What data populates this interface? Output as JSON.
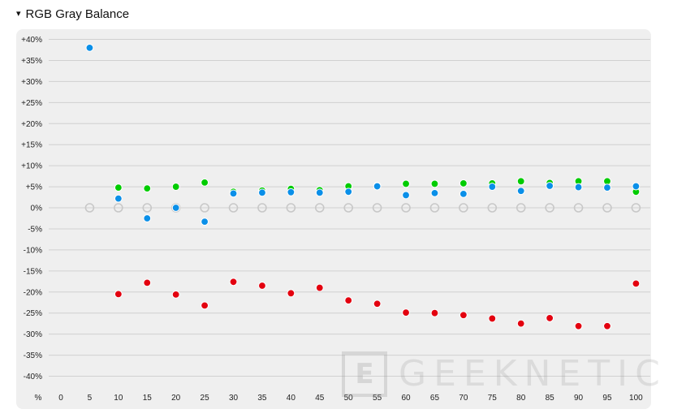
{
  "header": {
    "caret": "▾",
    "title": "RGB Gray Balance"
  },
  "watermark": {
    "box_letter": "E",
    "text": "GEEKNETIC"
  },
  "chart_data": {
    "type": "scatter",
    "title": "RGB Gray Balance",
    "x_axis_unit_label": "%",
    "x": [
      0,
      5,
      10,
      15,
      20,
      25,
      30,
      35,
      40,
      45,
      50,
      55,
      60,
      65,
      70,
      75,
      80,
      85,
      90,
      95,
      100
    ],
    "x_tick_labels": [
      "0",
      "5",
      "10",
      "15",
      "20",
      "25",
      "30",
      "35",
      "40",
      "45",
      "50",
      "55",
      "60",
      "65",
      "70",
      "75",
      "80",
      "85",
      "90",
      "95",
      "100"
    ],
    "y_tick_values": [
      40,
      35,
      30,
      25,
      20,
      15,
      10,
      5,
      0,
      -5,
      -10,
      -15,
      -20,
      -25,
      -30,
      -35,
      -40
    ],
    "y_tick_labels": [
      "+40%",
      "+35%",
      "+30%",
      "+25%",
      "+20%",
      "+15%",
      "+10%",
      "+5%",
      "0%",
      "-5%",
      "-10%",
      "-15%",
      "-20%",
      "-25%",
      "-30%",
      "-35%",
      "-40%"
    ],
    "ylim": [
      -40,
      40
    ],
    "grid": true,
    "series": [
      {
        "key": "reference",
        "color": "#c8c8c8",
        "style": "hollow",
        "x": [
          5,
          10,
          15,
          20,
          25,
          30,
          35,
          40,
          45,
          50,
          55,
          60,
          65,
          70,
          75,
          80,
          85,
          90,
          95,
          100
        ],
        "values": [
          0,
          0,
          0,
          0,
          0,
          0,
          0,
          0,
          0,
          0,
          0,
          0,
          0,
          0,
          0,
          0,
          0,
          0,
          0,
          0
        ]
      },
      {
        "key": "red",
        "color": "#e3000f",
        "style": "filled",
        "x": [
          10,
          15,
          20,
          25,
          30,
          35,
          40,
          45,
          50,
          55,
          60,
          65,
          70,
          75,
          80,
          85,
          90,
          95,
          100
        ],
        "values": [
          -20.5,
          -17.8,
          -20.6,
          -23.2,
          -17.6,
          -18.5,
          -20.3,
          -19.0,
          -22.0,
          -22.8,
          -24.9,
          -25.0,
          -25.5,
          -26.3,
          -27.5,
          -26.2,
          -28.1,
          -28.1,
          -18.0
        ]
      },
      {
        "key": "green",
        "color": "#00cc00",
        "style": "filled",
        "x": [
          10,
          15,
          20,
          25,
          30,
          35,
          40,
          45,
          50,
          55,
          60,
          65,
          70,
          75,
          80,
          85,
          90,
          95,
          100
        ],
        "values": [
          4.8,
          4.6,
          5.0,
          6.0,
          3.8,
          4.1,
          4.5,
          4.2,
          5.1,
          5.2,
          5.7,
          5.7,
          5.8,
          5.8,
          6.3,
          5.9,
          6.3,
          6.3,
          3.8
        ]
      },
      {
        "key": "blue",
        "color": "#0a8fe8",
        "style": "filled",
        "x": [
          5,
          10,
          15,
          20,
          25,
          30,
          35,
          40,
          45,
          50,
          55,
          60,
          65,
          70,
          75,
          80,
          85,
          90,
          95,
          100
        ],
        "values": [
          38.0,
          2.2,
          -2.5,
          0.0,
          -3.3,
          3.4,
          3.6,
          3.7,
          3.6,
          3.8,
          5.1,
          3.0,
          3.5,
          3.3,
          5.0,
          4.0,
          5.2,
          4.9,
          4.8,
          5.1
        ]
      }
    ]
  }
}
